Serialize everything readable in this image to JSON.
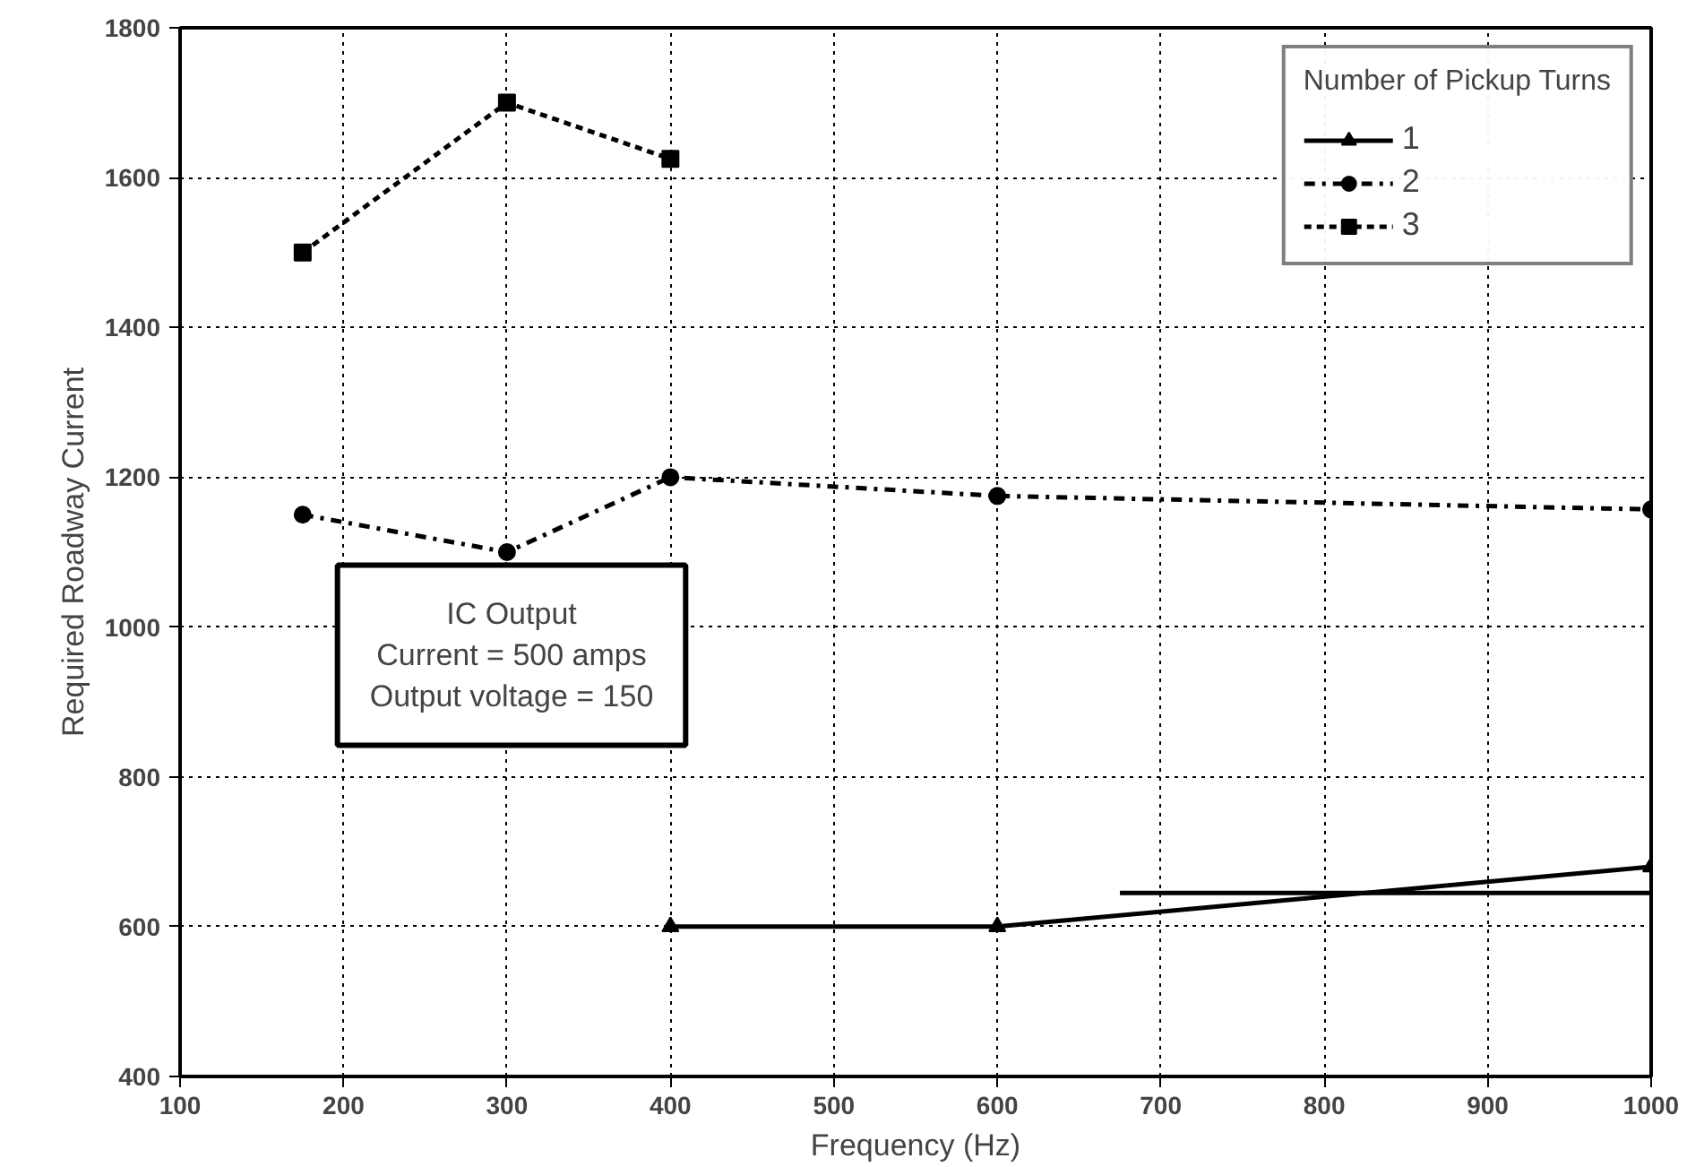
{
  "chart_data": {
    "type": "line",
    "xlabel": "Frequency (Hz)",
    "ylabel": "Required Roadway Current",
    "legend_title": "Number of Pickup Turns",
    "xlim": [
      100,
      1000
    ],
    "ylim": [
      400,
      1800
    ],
    "xticks": [
      100,
      200,
      300,
      400,
      500,
      600,
      700,
      800,
      900,
      1000
    ],
    "yticks": [
      400,
      600,
      800,
      1000,
      1200,
      1400,
      1600,
      1800
    ],
    "grid": true,
    "legend": "top right",
    "series": [
      {
        "name": "1",
        "color": "#000000",
        "marker": "triangle",
        "line_style": "solid",
        "x": [
          400,
          600,
          1000
        ],
        "values": [
          600,
          600,
          680
        ]
      },
      {
        "name": "2",
        "color": "#000000",
        "marker": "circle",
        "line_style": "dashed",
        "x": [
          175,
          300,
          400,
          600,
          1000
        ],
        "values": [
          1150,
          1100,
          1200,
          1175,
          1157
        ]
      },
      {
        "name": "3",
        "color": "#000000",
        "marker": "square",
        "line_style": "dotted",
        "x": [
          175,
          300,
          400
        ],
        "values": [
          1500,
          1700,
          1625
        ]
      },
      {
        "color": "#000000",
        "marker": "none",
        "line_style": "solid",
        "x": [
          675,
          1000
        ],
        "values": [
          645,
          645
        ]
      }
    ],
    "annotations": [
      "IC Output\nCurrent = 500 amps\nOutput voltage = 150"
    ]
  }
}
